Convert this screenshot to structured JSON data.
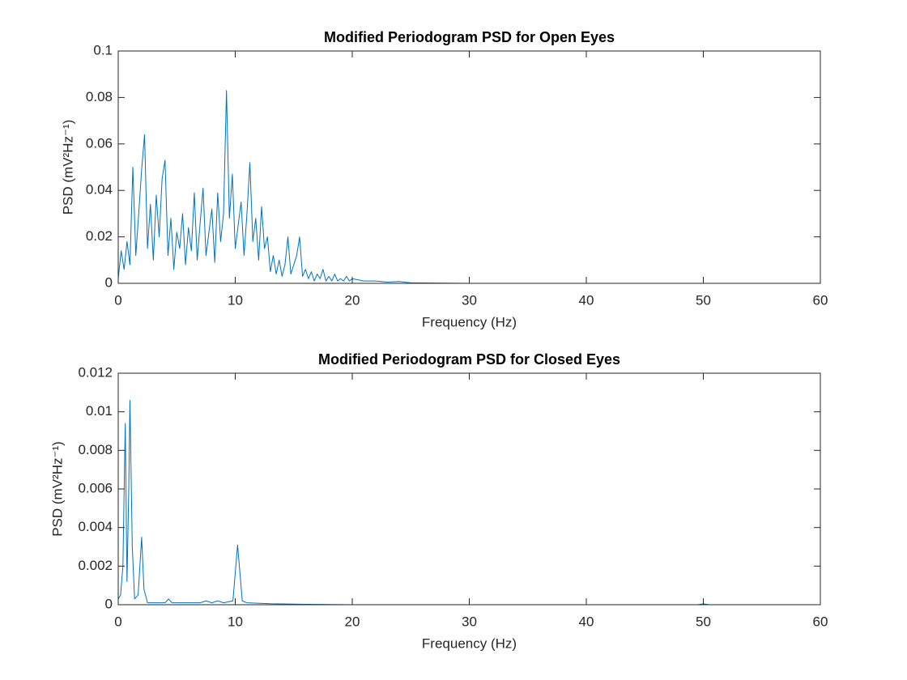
{
  "chart_data": [
    {
      "type": "line",
      "title": "Modified Periodogram PSD for Open Eyes",
      "x_label": "Frequency (Hz)",
      "y_label": "PSD (mV²Hz⁻¹)",
      "color": "#0072bd",
      "x": [
        0,
        0.25,
        0.5,
        0.75,
        1,
        1.25,
        1.5,
        1.75,
        2,
        2.25,
        2.5,
        2.75,
        3,
        3.25,
        3.5,
        3.75,
        4,
        4.25,
        4.5,
        4.75,
        5,
        5.25,
        5.5,
        5.75,
        6,
        6.25,
        6.5,
        6.75,
        7,
        7.25,
        7.5,
        7.75,
        8,
        8.25,
        8.5,
        8.75,
        9,
        9.25,
        9.5,
        9.75,
        10,
        10.25,
        10.5,
        10.75,
        11,
        11.25,
        11.5,
        11.75,
        12,
        12.25,
        12.5,
        12.75,
        13,
        13.25,
        13.5,
        13.75,
        14,
        14.25,
        14.5,
        14.75,
        15,
        15.25,
        15.5,
        15.75,
        16,
        16.25,
        16.5,
        16.75,
        17,
        17.25,
        17.5,
        17.75,
        18,
        18.25,
        18.5,
        18.75,
        19,
        19.25,
        19.5,
        19.75,
        20,
        21,
        22,
        23,
        24,
        25,
        30,
        60
      ],
      "values": [
        0.002,
        0.014,
        0.006,
        0.018,
        0.008,
        0.05,
        0.012,
        0.03,
        0.049,
        0.064,
        0.015,
        0.034,
        0.01,
        0.038,
        0.02,
        0.045,
        0.053,
        0.012,
        0.028,
        0.006,
        0.022,
        0.015,
        0.03,
        0.008,
        0.024,
        0.014,
        0.039,
        0.01,
        0.026,
        0.041,
        0.012,
        0.022,
        0.032,
        0.009,
        0.039,
        0.018,
        0.03,
        0.083,
        0.028,
        0.047,
        0.015,
        0.025,
        0.035,
        0.012,
        0.03,
        0.052,
        0.018,
        0.028,
        0.01,
        0.033,
        0.015,
        0.02,
        0.005,
        0.012,
        0.004,
        0.01,
        0.003,
        0.008,
        0.02,
        0.004,
        0.008,
        0.012,
        0.02,
        0.003,
        0.006,
        0.002,
        0.005,
        0.001,
        0.004,
        0.002,
        0.006,
        0.001,
        0.003,
        0.001,
        0.004,
        0.001,
        0.002,
        0.001,
        0.003,
        0.001,
        0.002,
        0.001,
        0.001,
        0.0005,
        0.0008,
        0.0002,
        0,
        0
      ],
      "xlim": [
        0,
        60
      ],
      "xticks": [
        0,
        10,
        20,
        30,
        40,
        50,
        60
      ],
      "ylim": [
        0,
        0.1
      ],
      "yticks": [
        0,
        0.02,
        0.04,
        0.06,
        0.08,
        0.1
      ]
    },
    {
      "type": "line",
      "title": "Modified Periodogram PSD for Closed Eyes",
      "x_label": "Frequency (Hz)",
      "y_label": "PSD (mV²Hz⁻¹)",
      "color": "#0072bd",
      "x": [
        0,
        0.2,
        0.4,
        0.6,
        0.75,
        0.9,
        1,
        1.2,
        1.4,
        1.7,
        2,
        2.2,
        2.5,
        3,
        3.5,
        4,
        4.3,
        4.6,
        5.5,
        7,
        7.5,
        8,
        8.5,
        9,
        9.8,
        10.2,
        10.6,
        11,
        13,
        16,
        20,
        49.5,
        50,
        50.5,
        60
      ],
      "values": [
        0.0003,
        0.0005,
        0.002,
        0.0094,
        0.0012,
        0.006,
        0.0106,
        0.003,
        0.0003,
        0.0005,
        0.0035,
        0.0008,
        0.0001,
        0.0001,
        0.0001,
        0.0001,
        0.0003,
        0.0001,
        0.0001,
        0.0001,
        0.0002,
        0.0001,
        0.0002,
        0.0001,
        0.0002,
        0.0031,
        0.0002,
        0.0001,
        5e-05,
        2e-05,
        0,
        0,
        5e-05,
        0,
        0
      ],
      "xlim": [
        0,
        60
      ],
      "xticks": [
        0,
        10,
        20,
        30,
        40,
        50,
        60
      ],
      "ylim": [
        0,
        0.012
      ],
      "yticks": [
        0,
        0.002,
        0.004,
        0.006,
        0.008,
        0.01,
        0.012
      ]
    }
  ]
}
